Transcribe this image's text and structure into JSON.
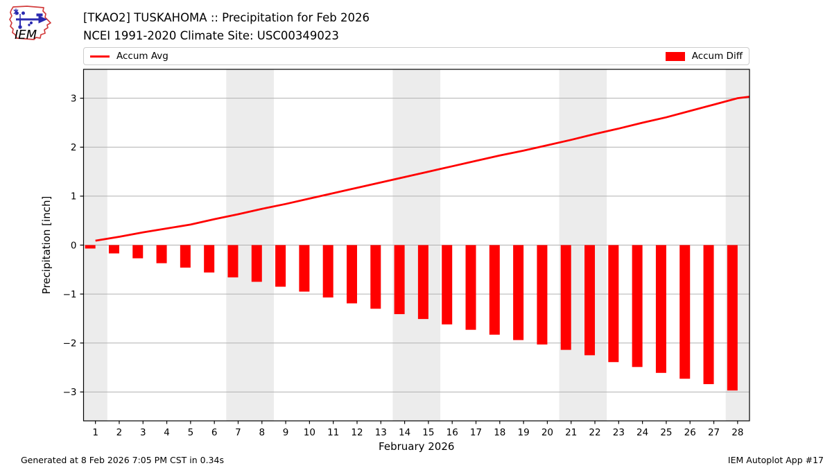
{
  "header": {
    "title_line1": "[TKAO2] TUSKAHOMA :: Precipitation for Feb 2026",
    "title_line2": "NCEI 1991-2020 Climate Site: USC00349023",
    "logo_text": "IEM"
  },
  "legend": {
    "avg_label": "Accum Avg",
    "diff_label": "Accum Diff"
  },
  "footer": {
    "generated": "Generated at 8 Feb 2026 7:05 PM CST in 0.34s",
    "app": "IEM Autoplot App #17"
  },
  "chart_data": {
    "type": "mixed",
    "title": "[TKAO2] TUSKAHOMA :: Precipitation for Feb 2026",
    "subtitle": "NCEI 1991-2020 Climate Site: USC00349023",
    "xlabel": "February 2026",
    "ylabel": "Precipitation [inch]",
    "x_days": [
      1,
      2,
      3,
      4,
      5,
      6,
      7,
      8,
      9,
      10,
      11,
      12,
      13,
      14,
      15,
      16,
      17,
      18,
      19,
      20,
      21,
      22,
      23,
      24,
      25,
      26,
      27,
      28
    ],
    "xlim": [
      0.5,
      28.5
    ],
    "ylim": [
      -3.59,
      3.59
    ],
    "yticks": [
      -3,
      -2,
      -1,
      0,
      1,
      2,
      3
    ],
    "grid": "horizontal",
    "legend_position": "top full-width, split left/right",
    "weekend_bands": [
      [
        0.5,
        1.5
      ],
      [
        6.5,
        8.5
      ],
      [
        13.5,
        15.5
      ],
      [
        20.5,
        22.5
      ],
      [
        27.5,
        28.5
      ]
    ],
    "series": [
      {
        "name": "Accum Avg",
        "type": "line",
        "color": "#ff0000",
        "values": [
          0.09,
          0.17,
          0.26,
          0.34,
          0.42,
          0.53,
          0.63,
          0.74,
          0.84,
          0.95,
          1.06,
          1.17,
          1.28,
          1.39,
          1.5,
          1.61,
          1.72,
          1.83,
          1.93,
          2.04,
          2.15,
          2.27,
          2.38,
          2.5,
          2.61,
          2.74,
          2.87,
          3.0
        ],
        "edge_extension": {
          "x": 28.5,
          "value": 3.03
        }
      },
      {
        "name": "Accum Diff",
        "type": "bar",
        "color": "#ff0000",
        "values": [
          -0.07,
          -0.17,
          -0.27,
          -0.37,
          -0.46,
          -0.56,
          -0.66,
          -0.75,
          -0.85,
          -0.95,
          -1.07,
          -1.19,
          -1.3,
          -1.41,
          -1.51,
          -1.62,
          -1.73,
          -1.83,
          -1.94,
          -2.03,
          -2.14,
          -2.25,
          -2.39,
          -2.49,
          -2.61,
          -2.73,
          -2.84,
          -2.97
        ]
      }
    ],
    "colors": {
      "accent": "#ff0000",
      "weekend_band": "#ececec",
      "grid": "#b0b0b0",
      "spine": "#000000"
    }
  }
}
